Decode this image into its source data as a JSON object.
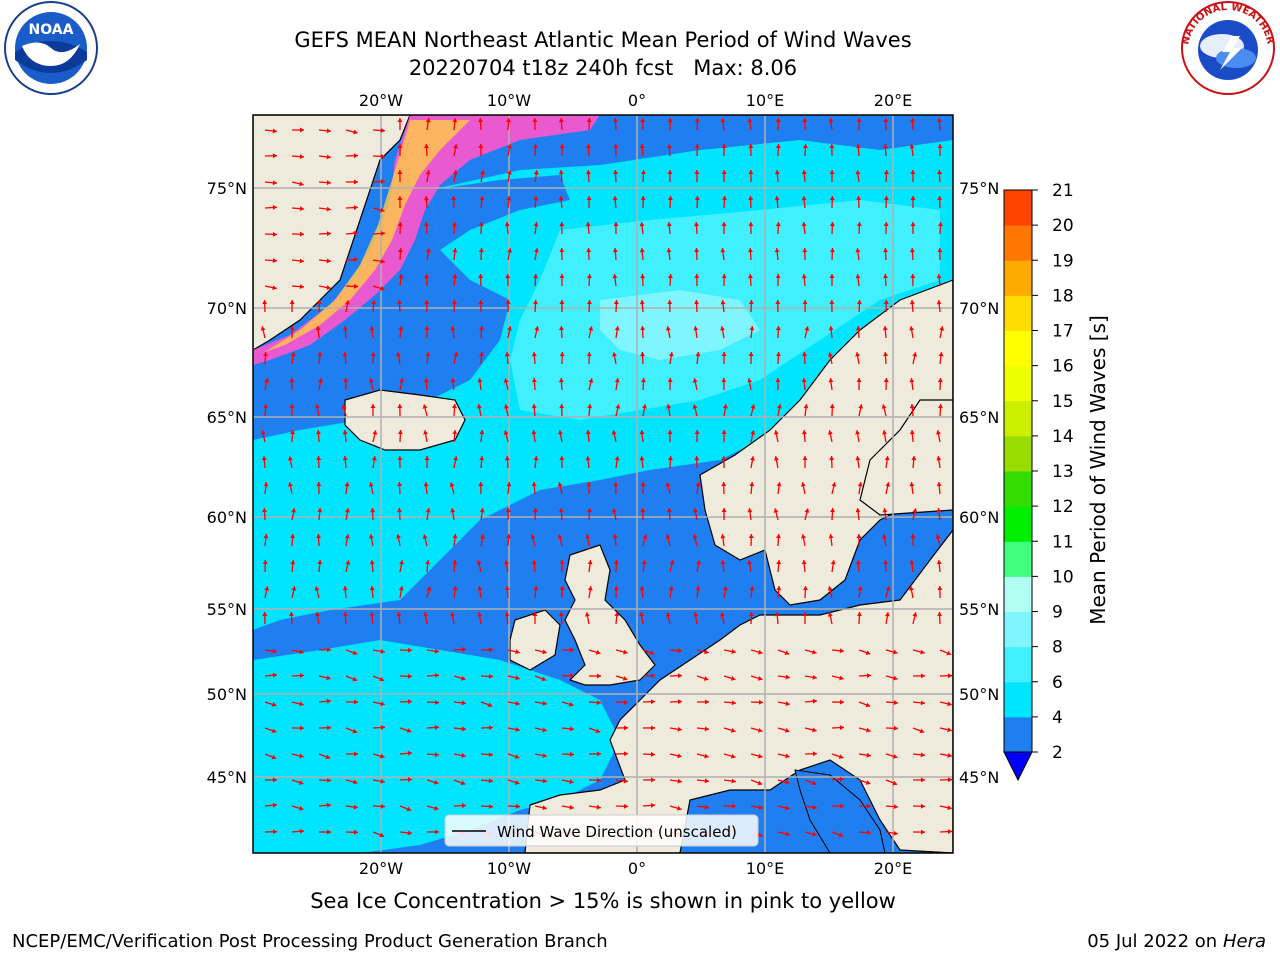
{
  "title": {
    "line1": "GEFS MEAN Northeast Atlantic Mean Period of Wind Waves",
    "line2": "20220704 t18z 240h fcst   Max: 8.06"
  },
  "axes": {
    "top_lon_labels": [
      "20°W",
      "10°W",
      "0°",
      "10°E",
      "20°E"
    ],
    "bottom_lon_labels": [
      "20°W",
      "10°W",
      "0°",
      "10°E",
      "20°E"
    ],
    "left_lat_labels": [
      "75°N",
      "70°N",
      "65°N",
      "60°N",
      "55°N",
      "50°N",
      "45°N"
    ],
    "right_lat_labels": [
      "75°N",
      "70°N",
      "65°N",
      "60°N",
      "55°N",
      "50°N",
      "45°N"
    ]
  },
  "legend": {
    "label": "Wind Wave Direction (unscaled)"
  },
  "colorbar": {
    "label": "Mean Period of Wind Waves [s]",
    "ticks": [
      "2",
      "4",
      "6",
      "8",
      "9",
      "10",
      "11",
      "12",
      "13",
      "14",
      "15",
      "16",
      "17",
      "18",
      "19",
      "20",
      "21"
    ],
    "colors": [
      "#1f7ff0",
      "#00e5ff",
      "#40f0ff",
      "#7ff5ff",
      "#b0fff2",
      "#40ff80",
      "#00ee00",
      "#33dd00",
      "#99dd00",
      "#ccee00",
      "#eeff00",
      "#ffff00",
      "#ffdd00",
      "#ffaa00",
      "#ff7700",
      "#ff4400",
      "#ff2200",
      "#ff0000"
    ],
    "under_color": "#0000ff"
  },
  "caption": "Sea Ice Concentration > 15% is shown in pink to yellow",
  "footer": {
    "left": "NCEP/EMC/Verification Post Processing Product Generation Branch",
    "right_date": "05 Jul 2022 on ",
    "right_host": "Hera"
  },
  "logos": {
    "noaa": "NOAA",
    "nws": "NATIONAL WEATHER SERVICE"
  },
  "colors": {
    "land": "#efebdc",
    "ocean_low": "#1f7ff0",
    "ocean_mid": "#00e5ff",
    "ocean_high": "#40f0ff",
    "arrow": "#ff0000",
    "grid": "#b0b0b0"
  }
}
